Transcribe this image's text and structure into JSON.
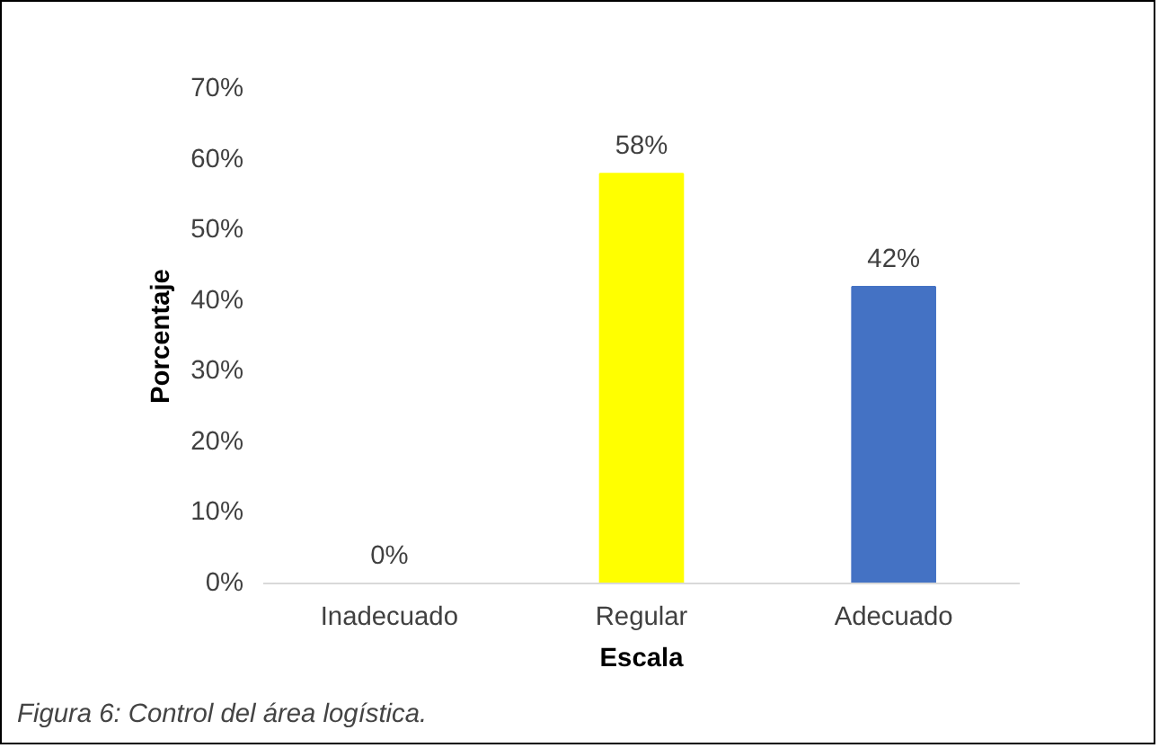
{
  "chart_data": {
    "type": "bar",
    "xlabel": "Escala",
    "ylabel": "Porcentaje",
    "categories": [
      "Inadecuado",
      "Regular",
      "Adecuado"
    ],
    "values": [
      0,
      58,
      42
    ],
    "colors": [
      "#4472c4",
      "#ffff00",
      "#4472c4"
    ],
    "value_labels": [
      "0%",
      "58%",
      "42%"
    ],
    "ylim": [
      0,
      70
    ],
    "yticks": [
      {
        "value": 0,
        "label": "0%"
      },
      {
        "value": 10,
        "label": "10%"
      },
      {
        "value": 20,
        "label": "20%"
      },
      {
        "value": 30,
        "label": "30%"
      },
      {
        "value": 40,
        "label": "40%"
      },
      {
        "value": 50,
        "label": "50%"
      },
      {
        "value": 60,
        "label": "60%"
      },
      {
        "value": 70,
        "label": "70%"
      }
    ],
    "grid": false,
    "annotations": [
      "Figura 6: Control del área logística."
    ]
  }
}
